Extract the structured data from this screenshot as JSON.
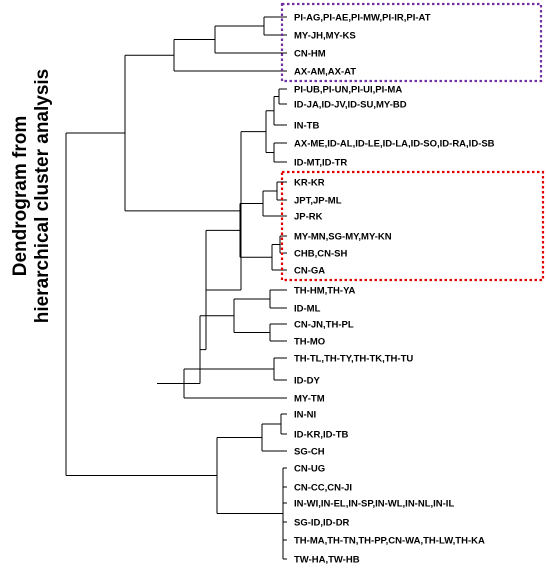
{
  "title_line1": "Dendrogram from",
  "title_line2": "hierarchical cluster analysis",
  "colors": {
    "purple_box": "#7030a0",
    "red_box": "#e00000",
    "line": "#000000"
  },
  "leaves": [
    "PI-AG,PI-AE,PI-MW,PI-IR,PI-AT",
    "MY-JH,MY-KS",
    "CN-HM",
    "AX-AM,AX-AT",
    "PI-UB,PI-UN,PI-UI,PI-MA",
    "ID-JA,ID-JV,ID-SU,MY-BD",
    "IN-TB",
    "AX-ME,ID-AL,ID-LE,ID-LA,ID-SO,ID-RA,ID-SB",
    "ID-MT,ID-TR",
    "KR-KR",
    "JPT,JP-ML",
    "JP-RK",
    "MY-MN,SG-MY,MY-KN",
    "CHB,CN-SH",
    "CN-GA",
    "TH-HM,TH-YA",
    "ID-ML",
    "CN-JN,TH-PL",
    "TH-MO",
    "TH-TL,TH-TY,TH-TK,TH-TU",
    "ID-DY",
    "MY-TM",
    "IN-NI",
    "ID-KR,ID-TB",
    "SG-CH",
    "CN-UG",
    "CN-CC,CN-JI",
    "IN-WI,IN-EL,IN-SP,IN-WL,IN-NL,IN-IL",
    "SG-ID,ID-DR",
    "TH-MA,TH-TN,TH-PP,CN-WA,TH-LW,TH-KA",
    "TW-HA,TW-HB"
  ]
}
